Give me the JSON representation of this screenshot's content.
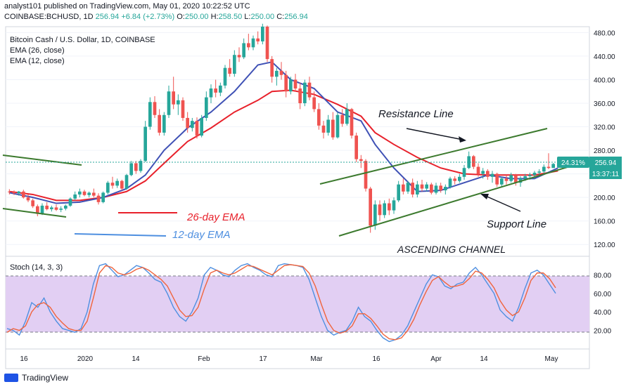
{
  "header": {
    "publish_line": "analyst101 published on TradingView.com, May 01, 2020 10:22:52 UTC",
    "symbol": "COINBASE:BCHUSD, 1D",
    "last": "256.94",
    "change": "+6.84 (+2.73%)",
    "o_label": "O:",
    "o": "250.00",
    "h_label": "H:",
    "h": "258.50",
    "l_label": "L:",
    "l": "250.00",
    "c_label": "C:",
    "c": "256.94"
  },
  "legend": {
    "title": "Bitcoin Cash / U.S. Dollar, 1D, COINBASE",
    "ema26": "EMA (26, close)",
    "ema12": "EMA (12, close)"
  },
  "price_tags": {
    "pct": "24.31%",
    "price": "256.94",
    "countdown": "13:37:11"
  },
  "annotations": {
    "resistance": "Resistance Line",
    "support": "Support Line",
    "channel": "ASCENDING CHANNEL",
    "ema26_label": "26-day EMA",
    "ema12_label": "12-day EMA"
  },
  "stoch_label": "Stoch (14, 3, 3)",
  "footer": {
    "brand": "TradingView"
  },
  "colors": {
    "up": "#26a69a",
    "down": "#ef5350",
    "ema26": "#e8212b",
    "ema12": "#3f51b5",
    "stoch_k": "#4e8fe0",
    "stoch_d": "#f0643c",
    "stoch_band": "#e2cff3",
    "trendline": "#3c7a2e",
    "tag": "#26a69a",
    "tag_dark": "#1f2a44"
  },
  "chart_data": [
    {
      "type": "candlestick",
      "title": "Bitcoin Cash / U.S. Dollar, 1D, COINBASE",
      "x_ticks": [
        "16",
        "2020",
        "14",
        "Feb",
        "17",
        "Mar",
        "16",
        "Apr",
        "14",
        "May"
      ],
      "y_ticks": [
        "480.00",
        "440.00",
        "400.00",
        "360.00",
        "320.00",
        "280.00",
        "240.00",
        "200.00",
        "160.00",
        "120.00"
      ],
      "ylim": [
        100,
        490
      ],
      "ohlc": [
        [
          210,
          214,
          205,
          209
        ],
        [
          209,
          212,
          204,
          207
        ],
        [
          207,
          211,
          203,
          210
        ],
        [
          210,
          213,
          198,
          200
        ],
        [
          200,
          205,
          192,
          195
        ],
        [
          195,
          198,
          182,
          185
        ],
        [
          185,
          188,
          168,
          172
        ],
        [
          172,
          190,
          170,
          186
        ],
        [
          186,
          192,
          178,
          180
        ],
        [
          180,
          186,
          176,
          183
        ],
        [
          183,
          188,
          177,
          179
        ],
        [
          179,
          185,
          175,
          181
        ],
        [
          181,
          188,
          178,
          186
        ],
        [
          186,
          200,
          184,
          198
        ],
        [
          198,
          210,
          195,
          205
        ],
        [
          205,
          215,
          200,
          210
        ],
        [
          210,
          213,
          202,
          204
        ],
        [
          204,
          210,
          200,
          208
        ],
        [
          208,
          215,
          200,
          203
        ],
        [
          203,
          207,
          188,
          192
        ],
        [
          192,
          210,
          190,
          208
        ],
        [
          208,
          228,
          205,
          225
        ],
        [
          225,
          235,
          215,
          220
        ],
        [
          220,
          232,
          216,
          228
        ],
        [
          228,
          230,
          212,
          215
        ],
        [
          215,
          240,
          213,
          238
        ],
        [
          238,
          262,
          236,
          258
        ],
        [
          258,
          262,
          240,
          245
        ],
        [
          245,
          265,
          242,
          262
        ],
        [
          262,
          330,
          260,
          320
        ],
        [
          320,
          370,
          315,
          362
        ],
        [
          362,
          372,
          335,
          340
        ],
        [
          340,
          350,
          305,
          310
        ],
        [
          310,
          345,
          305,
          340
        ],
        [
          340,
          390,
          335,
          380
        ],
        [
          380,
          405,
          350,
          358
        ],
        [
          358,
          375,
          340,
          365
        ],
        [
          365,
          370,
          330,
          335
        ],
        [
          335,
          345,
          310,
          318
        ],
        [
          318,
          335,
          312,
          330
        ],
        [
          330,
          336,
          300,
          305
        ],
        [
          305,
          340,
          302,
          335
        ],
        [
          335,
          380,
          330,
          370
        ],
        [
          370,
          392,
          360,
          385
        ],
        [
          385,
          400,
          370,
          378
        ],
        [
          378,
          395,
          372,
          390
        ],
        [
          390,
          425,
          385,
          420
        ],
        [
          420,
          435,
          405,
          410
        ],
        [
          410,
          450,
          405,
          442
        ],
        [
          442,
          455,
          430,
          438
        ],
        [
          438,
          470,
          435,
          462
        ],
        [
          462,
          478,
          450,
          455
        ],
        [
          455,
          475,
          450,
          470
        ],
        [
          470,
          482,
          460,
          465
        ],
        [
          465,
          495,
          460,
          490
        ],
        [
          490,
          492,
          430,
          435
        ],
        [
          435,
          440,
          395,
          405
        ],
        [
          405,
          420,
          390,
          415
        ],
        [
          415,
          430,
          400,
          408
        ],
        [
          408,
          415,
          370,
          380
        ],
        [
          380,
          405,
          375,
          400
        ],
        [
          400,
          410,
          380,
          385
        ],
        [
          385,
          395,
          350,
          360
        ],
        [
          360,
          400,
          355,
          395
        ],
        [
          395,
          405,
          365,
          370
        ],
        [
          370,
          380,
          345,
          350
        ],
        [
          350,
          360,
          315,
          322
        ],
        [
          322,
          330,
          300,
          310
        ],
        [
          310,
          340,
          305,
          332
        ],
        [
          332,
          345,
          298,
          302
        ],
        [
          302,
          345,
          300,
          340
        ],
        [
          340,
          350,
          320,
          325
        ],
        [
          325,
          360,
          322,
          350
        ],
        [
          350,
          352,
          300,
          305
        ],
        [
          305,
          310,
          260,
          265
        ],
        [
          265,
          272,
          250,
          262
        ],
        [
          262,
          265,
          210,
          215
        ],
        [
          215,
          218,
          140,
          152
        ],
        [
          152,
          195,
          145,
          188
        ],
        [
          188,
          195,
          160,
          170
        ],
        [
          170,
          195,
          165,
          190
        ],
        [
          190,
          198,
          170,
          178
        ],
        [
          178,
          200,
          172,
          195
        ],
        [
          195,
          228,
          192,
          222
        ],
        [
          222,
          232,
          205,
          210
        ],
        [
          210,
          228,
          206,
          225
        ],
        [
          225,
          232,
          200,
          205
        ],
        [
          205,
          228,
          200,
          222
        ],
        [
          222,
          230,
          210,
          215
        ],
        [
          215,
          226,
          210,
          222
        ],
        [
          222,
          225,
          205,
          208
        ],
        [
          208,
          225,
          205,
          220
        ],
        [
          220,
          225,
          208,
          212
        ],
        [
          212,
          222,
          205,
          218
        ],
        [
          218,
          235,
          215,
          232
        ],
        [
          232,
          236,
          222,
          228
        ],
        [
          228,
          240,
          225,
          235
        ],
        [
          235,
          255,
          230,
          250
        ],
        [
          250,
          278,
          248,
          270
        ],
        [
          270,
          272,
          248,
          252
        ],
        [
          252,
          258,
          235,
          240
        ],
        [
          240,
          250,
          232,
          245
        ],
        [
          245,
          248,
          230,
          235
        ],
        [
          235,
          245,
          225,
          240
        ],
        [
          240,
          242,
          218,
          222
        ],
        [
          222,
          235,
          218,
          232
        ],
        [
          232,
          238,
          222,
          228
        ],
        [
          228,
          242,
          225,
          238
        ],
        [
          238,
          240,
          220,
          225
        ],
        [
          225,
          236,
          218,
          232
        ],
        [
          232,
          240,
          228,
          236
        ],
        [
          236,
          242,
          230,
          238
        ],
        [
          238,
          245,
          232,
          242
        ],
        [
          242,
          248,
          238,
          244
        ],
        [
          244,
          256,
          240,
          252
        ],
        [
          252,
          275,
          248,
          250
        ],
        [
          250,
          258.5,
          250,
          256.94
        ]
      ],
      "ema26": [
        [
          0,
          210
        ],
        [
          5,
          205
        ],
        [
          10,
          195
        ],
        [
          15,
          195
        ],
        [
          20,
          200
        ],
        [
          25,
          210
        ],
        [
          29,
          228
        ],
        [
          33,
          258
        ],
        [
          38,
          295
        ],
        [
          43,
          318
        ],
        [
          48,
          345
        ],
        [
          53,
          365
        ],
        [
          56,
          380
        ],
        [
          60,
          382
        ],
        [
          65,
          375
        ],
        [
          70,
          358
        ],
        [
          75,
          338
        ],
        [
          78,
          310
        ],
        [
          82,
          290
        ],
        [
          87,
          268
        ],
        [
          92,
          250
        ],
        [
          97,
          240
        ],
        [
          102,
          238
        ],
        [
          107,
          238
        ],
        [
          112,
          238
        ],
        [
          117,
          245
        ]
      ],
      "ema12": [
        [
          0,
          208
        ],
        [
          5,
          200
        ],
        [
          10,
          190
        ],
        [
          15,
          192
        ],
        [
          20,
          200
        ],
        [
          25,
          215
        ],
        [
          29,
          238
        ],
        [
          33,
          280
        ],
        [
          38,
          318
        ],
        [
          43,
          345
        ],
        [
          48,
          380
        ],
        [
          53,
          425
        ],
        [
          56,
          430
        ],
        [
          60,
          400
        ],
        [
          65,
          385
        ],
        [
          70,
          345
        ],
        [
          75,
          330
        ],
        [
          78,
          290
        ],
        [
          82,
          250
        ],
        [
          87,
          210
        ],
        [
          92,
          212
        ],
        [
          97,
          225
        ],
        [
          102,
          238
        ],
        [
          107,
          232
        ],
        [
          112,
          232
        ],
        [
          117,
          250
        ]
      ]
    },
    {
      "type": "line",
      "title": "Stoch (14, 3, 3)",
      "y_ticks": [
        "80.00",
        "60.00",
        "40.00",
        "20.00"
      ],
      "ylim": [
        0,
        100
      ],
      "series": [
        {
          "values": [
            22,
            20,
            15,
            30,
            50,
            45,
            55,
            40,
            30,
            22,
            20,
            18,
            22,
            40,
            70,
            90,
            92,
            85,
            78,
            80,
            85,
            90,
            88,
            82,
            75,
            72,
            60,
            45,
            35,
            30,
            40,
            55,
            80,
            88,
            85,
            80,
            78,
            85,
            90,
            92,
            88,
            85,
            80,
            78,
            90,
            92,
            91,
            90,
            88,
            75,
            55,
            35,
            20,
            15,
            18,
            20,
            30,
            45,
            35,
            30,
            20,
            12,
            8,
            10,
            15,
            25,
            40,
            55,
            70,
            80,
            78,
            68,
            65,
            70,
            72,
            82,
            88,
            80,
            70,
            60,
            42,
            35,
            30,
            45,
            65,
            82,
            85,
            80,
            70,
            60
          ]
        },
        {
          "values": [
            18,
            22,
            20,
            25,
            40,
            48,
            50,
            45,
            35,
            28,
            22,
            20,
            20,
            30,
            55,
            82,
            90,
            88,
            82,
            80,
            82,
            86,
            88,
            85,
            80,
            75,
            68,
            55,
            42,
            35,
            36,
            45,
            65,
            82,
            85,
            82,
            80,
            82,
            86,
            90,
            89,
            86,
            83,
            80,
            85,
            90,
            91,
            90,
            89,
            82,
            68,
            48,
            30,
            20,
            17,
            19,
            25,
            38,
            38,
            33,
            25,
            16,
            11,
            10,
            12,
            20,
            32,
            48,
            62,
            74,
            78,
            72,
            67,
            68,
            70,
            76,
            84,
            82,
            75,
            66,
            52,
            42,
            36,
            40,
            55,
            74,
            82,
            82,
            76,
            66
          ]
        }
      ]
    }
  ]
}
